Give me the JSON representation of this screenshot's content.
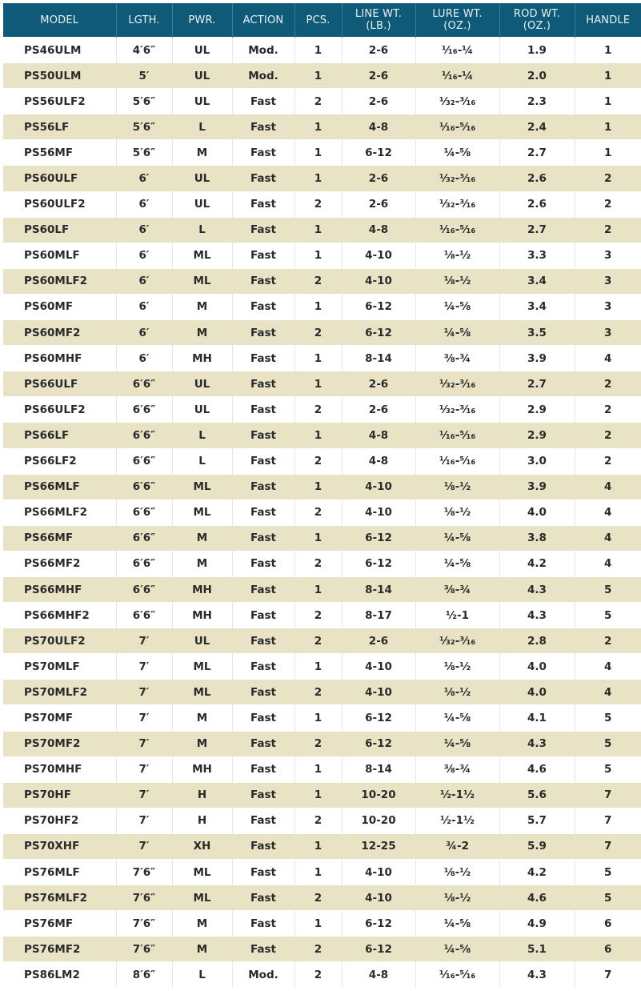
{
  "header": [
    "MODEL",
    "LGTH.",
    "PWR.",
    "ACTION",
    "PCS.",
    "LINE WT.\n(LB.)",
    "LURE WT.\n(OZ.)",
    "ROD WT.\n(OZ.)",
    "HANDLE"
  ],
  "colors": {
    "header_bg": "#0f5a78",
    "band": "#e9e3c6"
  },
  "rows": [
    [
      "PS46ULM",
      "4′6″",
      "UL",
      "Mod.",
      "1",
      "2-6",
      "¹⁄₁₆-¼",
      "1.9",
      "1"
    ],
    [
      "PS50ULM",
      "5′",
      "UL",
      "Mod.",
      "1",
      "2-6",
      "¹⁄₁₆-¼",
      "2.0",
      "1"
    ],
    [
      "PS56ULF2",
      "5′6″",
      "UL",
      "Fast",
      "2",
      "2-6",
      "¹⁄₃₂-³⁄₁₆",
      "2.3",
      "1"
    ],
    [
      "PS56LF",
      "5′6″",
      "L",
      "Fast",
      "1",
      "4-8",
      "¹⁄₁₆-⁵⁄₁₆",
      "2.4",
      "1"
    ],
    [
      "PS56MF",
      "5′6″",
      "M",
      "Fast",
      "1",
      "6-12",
      "¼-⅝",
      "2.7",
      "1"
    ],
    [
      "PS60ULF",
      "6′",
      "UL",
      "Fast",
      "1",
      "2-6",
      "¹⁄₃₂-³⁄₁₆",
      "2.6",
      "2"
    ],
    [
      "PS60ULF2",
      "6′",
      "UL",
      "Fast",
      "2",
      "2-6",
      "¹⁄₃₂-³⁄₁₆",
      "2.6",
      "2"
    ],
    [
      "PS60LF",
      "6′",
      "L",
      "Fast",
      "1",
      "4-8",
      "¹⁄₁₆-⁵⁄₁₆",
      "2.7",
      "2"
    ],
    [
      "PS60MLF",
      "6′",
      "ML",
      "Fast",
      "1",
      "4-10",
      "⅛-½",
      "3.3",
      "3"
    ],
    [
      "PS60MLF2",
      "6′",
      "ML",
      "Fast",
      "2",
      "4-10",
      "⅛-½",
      "3.4",
      "3"
    ],
    [
      "PS60MF",
      "6′",
      "M",
      "Fast",
      "1",
      "6-12",
      "¼-⅝",
      "3.4",
      "3"
    ],
    [
      "PS60MF2",
      "6′",
      "M",
      "Fast",
      "2",
      "6-12",
      "¼-⅝",
      "3.5",
      "3"
    ],
    [
      "PS60MHF",
      "6′",
      "MH",
      "Fast",
      "1",
      "8-14",
      "⅜-¾",
      "3.9",
      "4"
    ],
    [
      "PS66ULF",
      "6′6″",
      "UL",
      "Fast",
      "1",
      "2-6",
      "¹⁄₃₂-³⁄₁₆",
      "2.7",
      "2"
    ],
    [
      "PS66ULF2",
      "6′6″",
      "UL",
      "Fast",
      "2",
      "2-6",
      "¹⁄₃₂-³⁄₁₆",
      "2.9",
      "2"
    ],
    [
      "PS66LF",
      "6′6″",
      "L",
      "Fast",
      "1",
      "4-8",
      "¹⁄₁₆-⁵⁄₁₆",
      "2.9",
      "2"
    ],
    [
      "PS66LF2",
      "6′6″",
      "L",
      "Fast",
      "2",
      "4-8",
      "¹⁄₁₆-⁵⁄₁₆",
      "3.0",
      "2"
    ],
    [
      "PS66MLF",
      "6′6″",
      "ML",
      "Fast",
      "1",
      "4-10",
      "⅛-½",
      "3.9",
      "4"
    ],
    [
      "PS66MLF2",
      "6′6″",
      "ML",
      "Fast",
      "2",
      "4-10",
      "⅛-½",
      "4.0",
      "4"
    ],
    [
      "PS66MF",
      "6′6″",
      "M",
      "Fast",
      "1",
      "6-12",
      "¼-⅝",
      "3.8",
      "4"
    ],
    [
      "PS66MF2",
      "6′6″",
      "M",
      "Fast",
      "2",
      "6-12",
      "¼-⅝",
      "4.2",
      "4"
    ],
    [
      "PS66MHF",
      "6′6″",
      "MH",
      "Fast",
      "1",
      "8-14",
      "⅜-¾",
      "4.3",
      "5"
    ],
    [
      "PS66MHF2",
      "6′6″",
      "MH",
      "Fast",
      "2",
      "8-17",
      "½-1",
      "4.3",
      "5"
    ],
    [
      "PS70ULF2",
      "7′",
      "UL",
      "Fast",
      "2",
      "2-6",
      "¹⁄₃₂-³⁄₁₆",
      "2.8",
      "2"
    ],
    [
      "PS70MLF",
      "7′",
      "ML",
      "Fast",
      "1",
      "4-10",
      "⅛-½",
      "4.0",
      "4"
    ],
    [
      "PS70MLF2",
      "7′",
      "ML",
      "Fast",
      "2",
      "4-10",
      "⅛-½",
      "4.0",
      "4"
    ],
    [
      "PS70MF",
      "7′",
      "M",
      "Fast",
      "1",
      "6-12",
      "¼-⅝",
      "4.1",
      "5"
    ],
    [
      "PS70MF2",
      "7′",
      "M",
      "Fast",
      "2",
      "6-12",
      "¼-⅝",
      "4.3",
      "5"
    ],
    [
      "PS70MHF",
      "7′",
      "MH",
      "Fast",
      "1",
      "8-14",
      "⅜-¾",
      "4.6",
      "5"
    ],
    [
      "PS70HF",
      "7′",
      "H",
      "Fast",
      "1",
      "10-20",
      "½-1½",
      "5.6",
      "7"
    ],
    [
      "PS70HF2",
      "7′",
      "H",
      "Fast",
      "2",
      "10-20",
      "½-1½",
      "5.7",
      "7"
    ],
    [
      "PS70XHF",
      "7′",
      "XH",
      "Fast",
      "1",
      "12-25",
      "¾-2",
      "5.9",
      "7"
    ],
    [
      "PS76MLF",
      "7′6″",
      "ML",
      "Fast",
      "1",
      "4-10",
      "⅛-½",
      "4.2",
      "5"
    ],
    [
      "PS76MLF2",
      "7′6″",
      "ML",
      "Fast",
      "2",
      "4-10",
      "⅛-½",
      "4.6",
      "5"
    ],
    [
      "PS76MF",
      "7′6″",
      "M",
      "Fast",
      "1",
      "6-12",
      "¼-⅝",
      "4.9",
      "6"
    ],
    [
      "PS76MF2",
      "7′6″",
      "M",
      "Fast",
      "2",
      "6-12",
      "¼-⅝",
      "5.1",
      "6"
    ],
    [
      "PS86LM2",
      "8′6″",
      "L",
      "Mod.",
      "2",
      "4-8",
      "¹⁄₁₆-⁵⁄₁₆",
      "4.3",
      "7"
    ]
  ]
}
